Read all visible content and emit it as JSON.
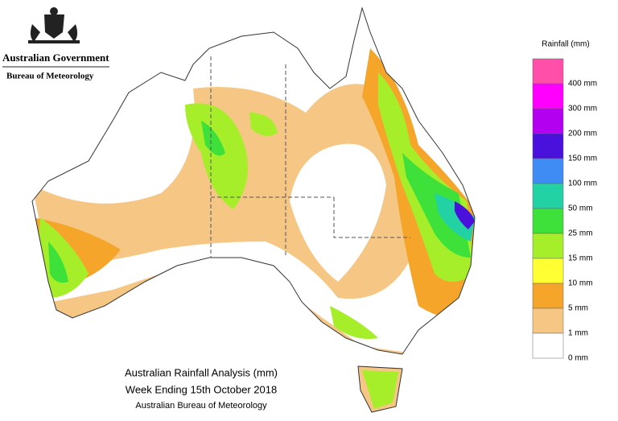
{
  "header": {
    "government": "Australian Government",
    "agency": "Bureau of Meteorology"
  },
  "legend": {
    "title": "Rainfall (mm)",
    "items": [
      {
        "label": "",
        "color": "#ff4fa8"
      },
      {
        "label": "400 mm",
        "color": "#ff00ff"
      },
      {
        "label": "300 mm",
        "color": "#b400f0"
      },
      {
        "label": "200 mm",
        "color": "#4a10dc"
      },
      {
        "label": "150 mm",
        "color": "#3f8cf5"
      },
      {
        "label": "100 mm",
        "color": "#22d2a4"
      },
      {
        "label": "50 mm",
        "color": "#3ee03a"
      },
      {
        "label": "25 mm",
        "color": "#a6ee2a"
      },
      {
        "label": "15 mm",
        "color": "#ffff33"
      },
      {
        "label": "10 mm",
        "color": "#f5a52a"
      },
      {
        "label": "5 mm",
        "color": "#f6c784"
      },
      {
        "label": "1 mm",
        "color": "#ffffff"
      }
    ],
    "bottom_label": "0 mm"
  },
  "caption": {
    "line1": "Australian Rainfall Analysis (mm)",
    "line2": "Week Ending 15th October 2018",
    "line3": "Australian Bureau of Meteorology"
  }
}
